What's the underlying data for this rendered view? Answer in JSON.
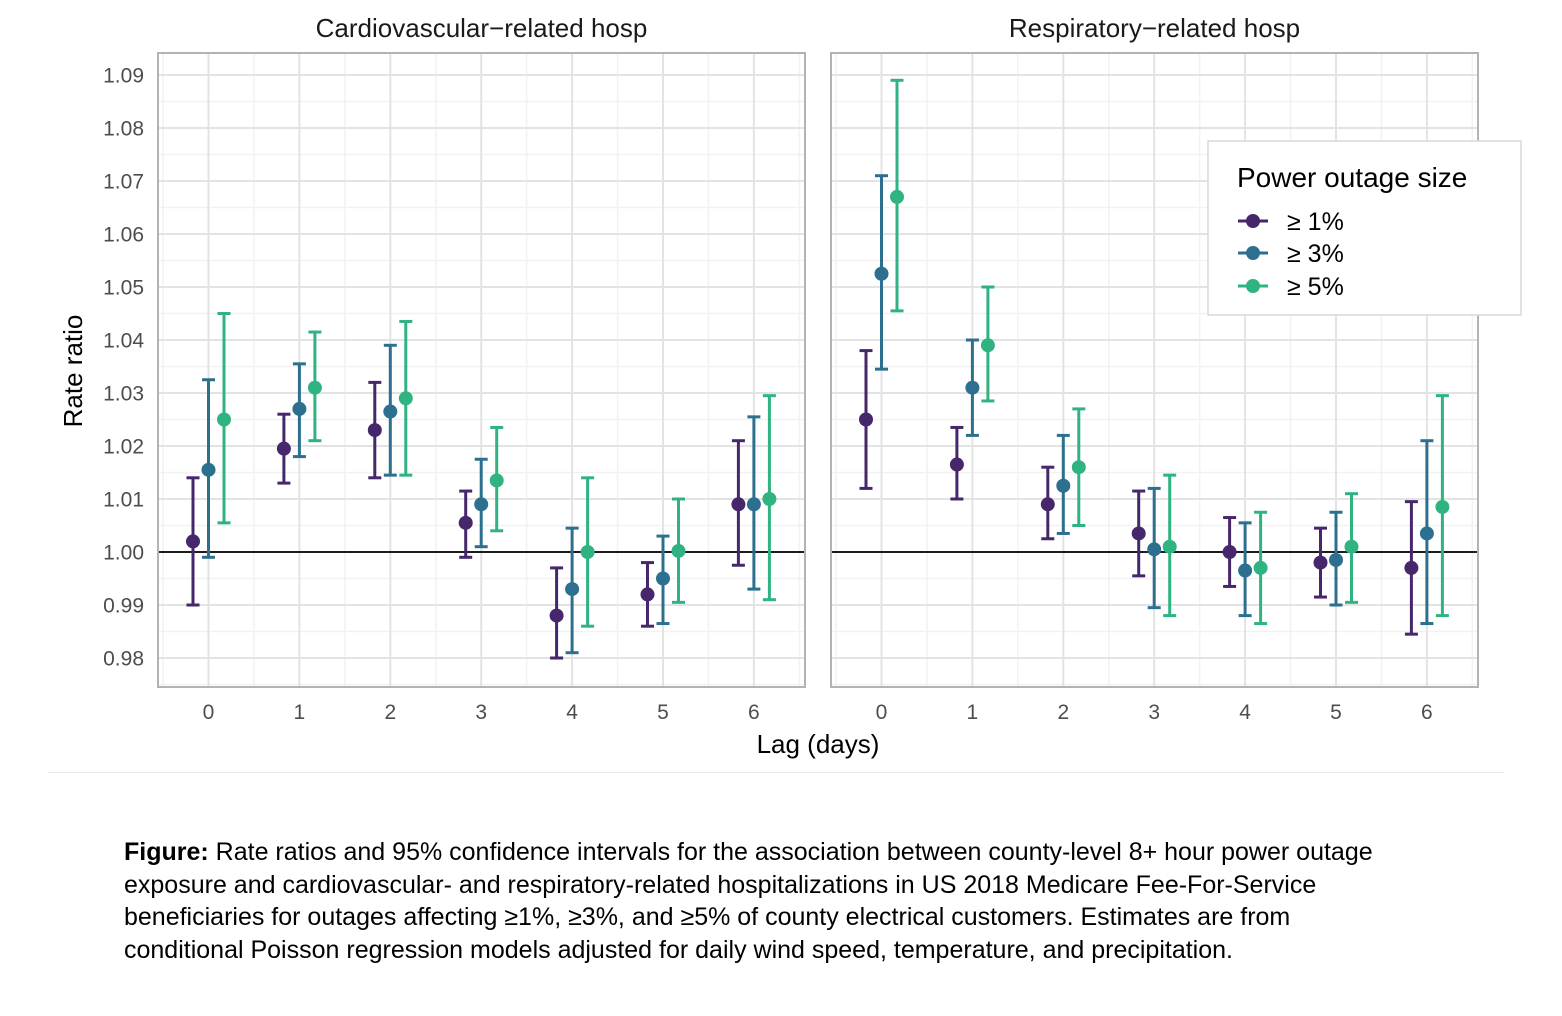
{
  "chart_data": {
    "type": "scatter",
    "subtype": "point-range (faceted)",
    "xlabel": "Lag (days)",
    "ylabel": "Rate ratio",
    "x": [
      0,
      1,
      2,
      3,
      4,
      5,
      6
    ],
    "x_tick_labels": [
      "0",
      "1",
      "2",
      "3",
      "4",
      "5",
      "6"
    ],
    "ylim": [
      0.975,
      1.0925
    ],
    "y_ticks": [
      0.98,
      0.99,
      1.0,
      1.01,
      1.02,
      1.03,
      1.04,
      1.05,
      1.06,
      1.07,
      1.08,
      1.09
    ],
    "y_tick_labels": [
      "0.98",
      "0.99",
      "1.00",
      "1.01",
      "1.02",
      "1.03",
      "1.04",
      "1.05",
      "1.06",
      "1.07",
      "1.08",
      "1.09"
    ],
    "reference_line": 1.0,
    "grid": true,
    "legend": {
      "title": "Power outage size",
      "placement": "top-right",
      "entries": [
        "≥ 1%",
        "≥ 3%",
        "≥ 5%"
      ]
    },
    "series_colors": [
      "#46276b",
      "#2d6f8e",
      "#2fb381"
    ],
    "facets": [
      {
        "title": "Cardiovascular−related hosp",
        "series": [
          {
            "name": "≥ 1%",
            "estimate": [
              1.002,
              1.0195,
              1.023,
              1.0055,
              0.988,
              0.992,
              1.009
            ],
            "lower": [
              0.99,
              1.013,
              1.014,
              0.999,
              0.98,
              0.986,
              0.9975
            ],
            "upper": [
              1.014,
              1.026,
              1.032,
              1.0115,
              0.997,
              0.998,
              1.021
            ]
          },
          {
            "name": "≥ 3%",
            "estimate": [
              1.0155,
              1.027,
              1.0265,
              1.009,
              0.993,
              0.995,
              1.009
            ],
            "lower": [
              0.999,
              1.018,
              1.0145,
              1.001,
              0.981,
              0.9865,
              0.993
            ],
            "upper": [
              1.0325,
              1.0355,
              1.039,
              1.0175,
              1.0045,
              1.003,
              1.0255
            ]
          },
          {
            "name": "≥ 5%",
            "estimate": [
              1.025,
              1.031,
              1.029,
              1.0135,
              1.0,
              1.0002,
              1.01
            ],
            "lower": [
              1.0055,
              1.021,
              1.0145,
              1.004,
              0.986,
              0.9905,
              0.991
            ],
            "upper": [
              1.045,
              1.0415,
              1.0435,
              1.0235,
              1.014,
              1.01,
              1.0295
            ]
          }
        ]
      },
      {
        "title": "Respiratory−related hosp",
        "series": [
          {
            "name": "≥ 1%",
            "estimate": [
              1.025,
              1.0165,
              1.009,
              1.0035,
              1.0,
              0.998,
              0.997
            ],
            "lower": [
              1.012,
              1.01,
              1.0025,
              0.9955,
              0.9935,
              0.9915,
              0.9845
            ],
            "upper": [
              1.038,
              1.0235,
              1.016,
              1.0115,
              1.0065,
              1.0045,
              1.0095
            ]
          },
          {
            "name": "≥ 3%",
            "estimate": [
              1.0525,
              1.031,
              1.0125,
              1.0005,
              0.9965,
              0.9985,
              1.0035
            ],
            "lower": [
              1.0345,
              1.022,
              1.0035,
              0.9895,
              0.988,
              0.99,
              0.9865
            ],
            "upper": [
              1.071,
              1.04,
              1.022,
              1.012,
              1.0055,
              1.0075,
              1.021
            ]
          },
          {
            "name": "≥ 5%",
            "estimate": [
              1.067,
              1.039,
              1.016,
              1.001,
              0.997,
              1.001,
              1.0085
            ],
            "lower": [
              1.0455,
              1.0285,
              1.005,
              0.988,
              0.9865,
              0.9905,
              0.988
            ],
            "upper": [
              1.089,
              1.05,
              1.027,
              1.0145,
              1.0075,
              1.011,
              1.0295
            ]
          }
        ]
      }
    ]
  },
  "caption": {
    "label": "Figure:",
    "text": "Rate ratios and 95% confidence intervals for the association between county-level 8+ hour power outage exposure and cardiovascular- and respiratory-related hospitalizations in US 2018 Medicare Fee-For-Service beneficiaries for outages affecting ≥1%, ≥3%, and ≥5% of county electrical customers. Estimates are from conditional Poisson regression models adjusted for daily wind speed, temperature, and precipitation."
  }
}
